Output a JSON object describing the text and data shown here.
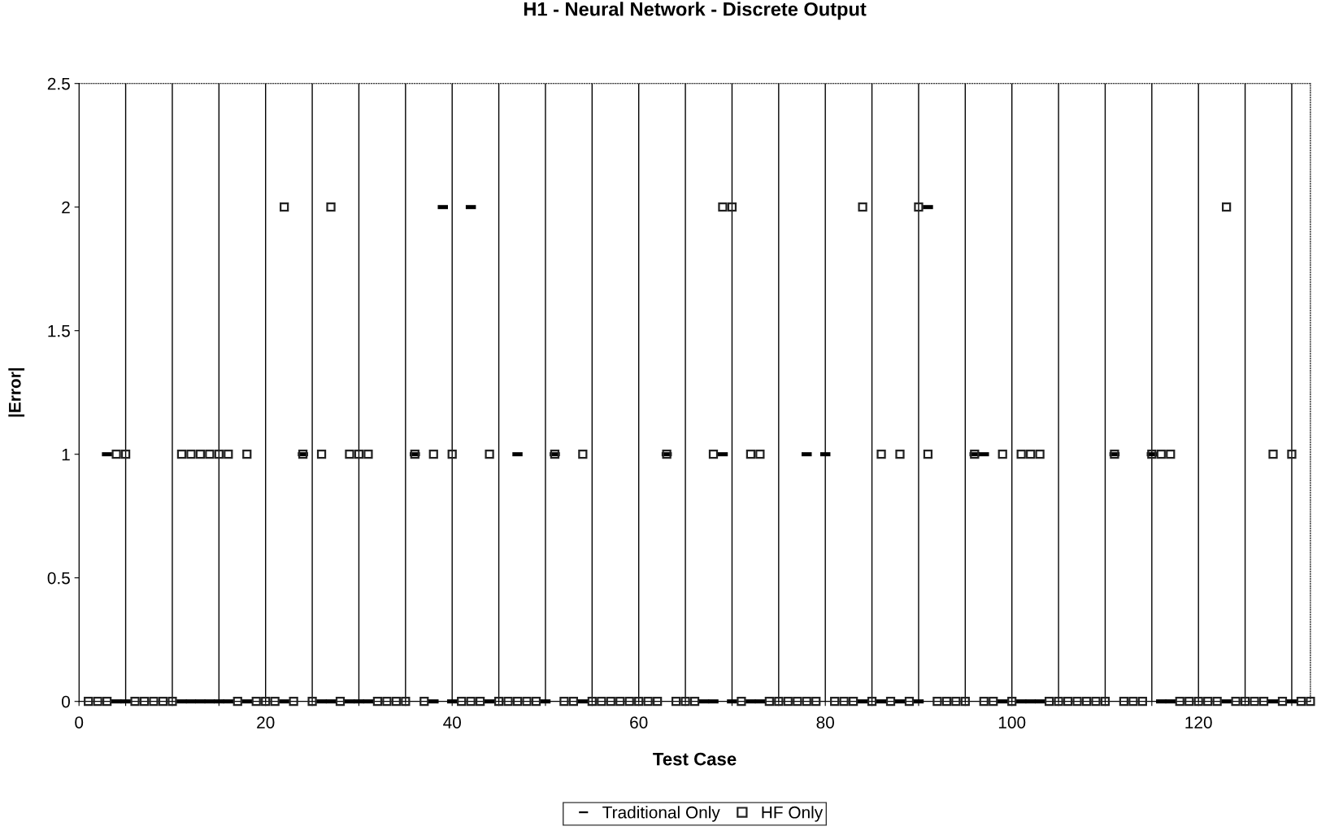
{
  "chart_data": {
    "type": "scatter",
    "title": "H1 - Neural Network - Discrete Output",
    "xlabel": "Test Case",
    "ylabel": "|Error|",
    "xlim": [
      0,
      132
    ],
    "ylim": [
      0,
      2.5
    ],
    "xticks": [
      0,
      {
        "value": 5,
        "label": null
      },
      {
        "value": 10,
        "label": null
      },
      {
        "value": 15,
        "label": null
      },
      20,
      {
        "value": 25,
        "label": null
      },
      {
        "value": 30,
        "label": null
      },
      {
        "value": 35,
        "label": null
      },
      40,
      {
        "value": 45,
        "label": null
      },
      {
        "value": 50,
        "label": null
      },
      {
        "value": 55,
        "label": null
      },
      60,
      {
        "value": 65,
        "label": null
      },
      {
        "value": 70,
        "label": null
      },
      {
        "value": 75,
        "label": null
      },
      80,
      {
        "value": 85,
        "label": null
      },
      {
        "value": 90,
        "label": null
      },
      {
        "value": 95,
        "label": null
      },
      100,
      {
        "value": 105,
        "label": null
      },
      {
        "value": 110,
        "label": null
      },
      {
        "value": 115,
        "label": null
      },
      120,
      {
        "value": 125,
        "label": null
      },
      {
        "value": 130,
        "label": null
      }
    ],
    "yticks": [
      0,
      0.5,
      1,
      1.5,
      2,
      2.5
    ],
    "grid": "x",
    "legend": "bottom",
    "series": [
      {
        "name": "Traditional Only",
        "color": "#000000",
        "x": [
          3,
          4,
          5,
          11,
          12,
          13,
          14,
          15,
          16,
          18,
          22,
          24,
          26,
          27,
          29,
          30,
          31,
          36,
          38,
          39,
          40,
          42,
          44,
          47,
          50,
          51,
          54,
          63,
          67,
          68,
          69,
          70,
          72,
          73,
          78,
          80,
          84,
          86,
          88,
          90,
          91,
          96,
          97,
          99,
          101,
          102,
          103,
          111,
          115,
          116,
          117,
          123,
          128,
          130
        ],
        "values": [
          1,
          0,
          0,
          0,
          0,
          0,
          0,
          0,
          0,
          0,
          0,
          1,
          0,
          0,
          0,
          0,
          0,
          1,
          0,
          2,
          0,
          2,
          0,
          1,
          0,
          1,
          0,
          1,
          0,
          0,
          1,
          0,
          0,
          0,
          1,
          1,
          0,
          0,
          0,
          0,
          2,
          1,
          1,
          0,
          0,
          0,
          0,
          1,
          1,
          0,
          0,
          0,
          0,
          0
        ]
      },
      {
        "name": "HF Only",
        "color": "#222222",
        "marker": "square",
        "x": [
          1,
          2,
          3,
          4,
          5,
          6,
          7,
          8,
          9,
          10,
          11,
          12,
          13,
          14,
          15,
          16,
          17,
          18,
          19,
          20,
          21,
          22,
          23,
          24,
          25,
          26,
          27,
          28,
          29,
          30,
          31,
          32,
          33,
          34,
          35,
          36,
          37,
          38,
          40,
          41,
          42,
          43,
          44,
          45,
          46,
          47,
          48,
          49,
          51,
          52,
          53,
          54,
          55,
          56,
          57,
          58,
          59,
          60,
          61,
          62,
          63,
          64,
          65,
          66,
          68,
          69,
          70,
          71,
          72,
          73,
          74,
          75,
          76,
          77,
          78,
          79,
          81,
          82,
          83,
          84,
          85,
          86,
          87,
          88,
          89,
          90,
          91,
          92,
          93,
          94,
          95,
          96,
          97,
          98,
          99,
          100,
          101,
          102,
          103,
          104,
          105,
          106,
          107,
          108,
          109,
          110,
          111,
          112,
          113,
          114,
          115,
          116,
          117,
          118,
          119,
          120,
          121,
          122,
          123,
          124,
          125,
          126,
          127,
          128,
          129,
          130,
          131,
          132
        ],
        "values": [
          0,
          0,
          0,
          1,
          1,
          0,
          0,
          0,
          0,
          0,
          1,
          1,
          1,
          1,
          1,
          1,
          0,
          1,
          0,
          0,
          0,
          2,
          0,
          1,
          0,
          1,
          2,
          0,
          1,
          1,
          1,
          0,
          0,
          0,
          0,
          1,
          0,
          1,
          1,
          0,
          0,
          0,
          1,
          0,
          0,
          0,
          0,
          0,
          1,
          0,
          0,
          1,
          0,
          0,
          0,
          0,
          0,
          0,
          0,
          0,
          1,
          0,
          0,
          0,
          1,
          2,
          2,
          0,
          1,
          1,
          0,
          0,
          0,
          0,
          0,
          0,
          0,
          0,
          0,
          2,
          0,
          1,
          0,
          1,
          0,
          2,
          1,
          0,
          0,
          0,
          0,
          1,
          0,
          0,
          1,
          0,
          1,
          1,
          1,
          0,
          0,
          0,
          0,
          0,
          0,
          0,
          1,
          0,
          0,
          0,
          1,
          1,
          1,
          0,
          0,
          0,
          0,
          0,
          2,
          0,
          0,
          0,
          0,
          1,
          0,
          1,
          0,
          0
        ]
      }
    ]
  }
}
